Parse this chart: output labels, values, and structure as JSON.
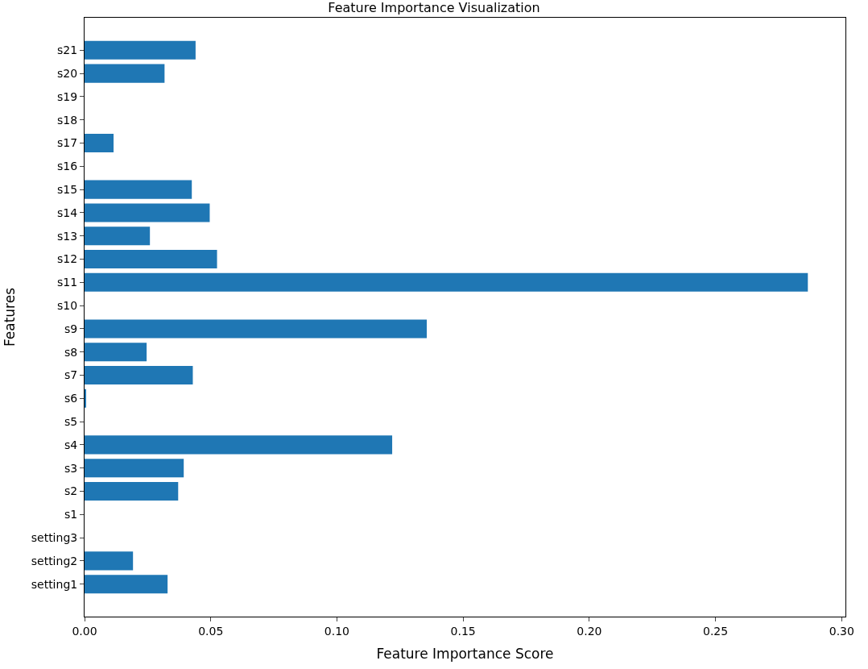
{
  "chart_data": {
    "type": "bar",
    "orientation": "horizontal",
    "title": "Feature Importance Visualization",
    "xlabel": "Feature Importance Score",
    "ylabel": "Features",
    "categories": [
      "s21",
      "s20",
      "s19",
      "s18",
      "s17",
      "s16",
      "s15",
      "s14",
      "s13",
      "s12",
      "s11",
      "s10",
      "s9",
      "s8",
      "s7",
      "s6",
      "s5",
      "s4",
      "s3",
      "s2",
      "s1",
      "setting3",
      "setting2",
      "setting1"
    ],
    "values": [
      0.044,
      0.0317,
      0,
      0,
      0.0115,
      0,
      0.0425,
      0.0496,
      0.0259,
      0.0525,
      0.2866,
      0,
      0.1356,
      0.0246,
      0.0429,
      0.0006,
      0,
      0.1219,
      0.0393,
      0.0371,
      0,
      0,
      0.0192,
      0.0329
    ],
    "color": "#1f77b4",
    "xlim": [
      0,
      0.3015
    ],
    "xticks": [
      {
        "value": 0,
        "label": "0.00"
      },
      {
        "value": 0.05,
        "label": "0.05"
      },
      {
        "value": 0.1,
        "label": "0.10"
      },
      {
        "value": 0.15,
        "label": "0.15"
      },
      {
        "value": 0.2,
        "label": "0.20"
      },
      {
        "value": 0.25,
        "label": "0.25"
      },
      {
        "value": 0.3,
        "label": "0.30"
      }
    ]
  }
}
